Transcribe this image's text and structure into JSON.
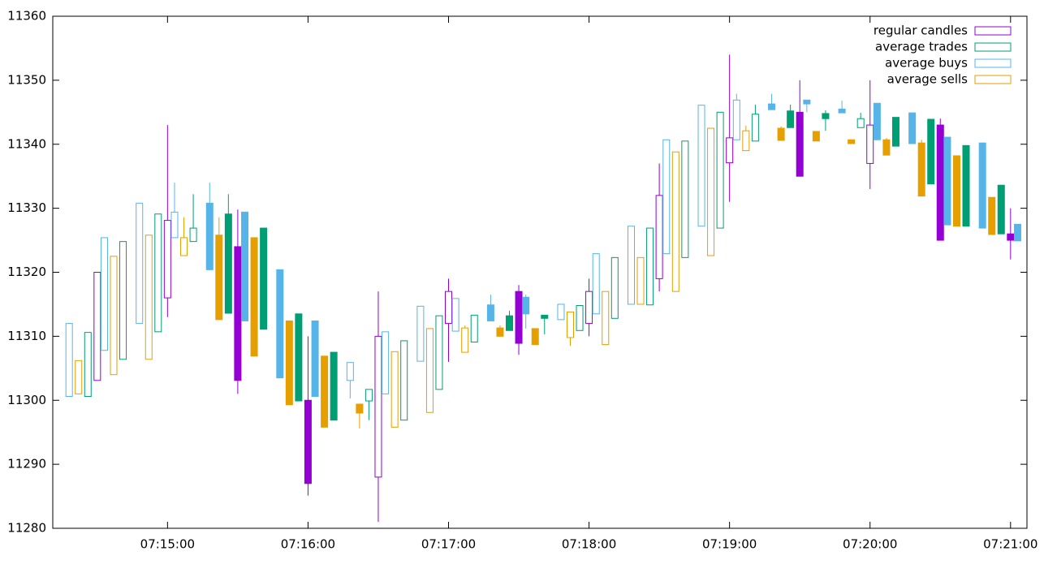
{
  "chart_data": {
    "type": "candlestick",
    "xlim": [
      "07:14:11",
      "07:21:07"
    ],
    "xticks": [
      "07:15:00",
      "07:16:00",
      "07:17:00",
      "07:18:00",
      "07:19:00",
      "07:20:00",
      "07:21:00"
    ],
    "ylim": [
      11280,
      11360
    ],
    "yticks": [
      11280,
      11290,
      11300,
      11310,
      11320,
      11330,
      11340,
      11350,
      11360
    ],
    "grid": false,
    "legend": "top-right",
    "series": [
      {
        "name": "regular candles",
        "color": "#9400d3",
        "x": [
          "07:14:30",
          "07:15:00",
          "07:15:30",
          "07:16:00",
          "07:16:30",
          "07:17:00",
          "07:17:30",
          "07:18:00",
          "07:18:30",
          "07:19:00",
          "07:19:30",
          "07:20:00",
          "07:20:30",
          "07:21:00"
        ],
        "open": [
          11303.1,
          11316,
          11324,
          11300,
          11288,
          11312,
          11317,
          11312,
          11319,
          11337.1,
          11345,
          11337,
          11343,
          11326
        ],
        "high": [
          11320,
          11343,
          11329.8,
          11310,
          11317,
          11319,
          11318,
          11319,
          11337,
          11354,
          11350,
          11350,
          11344,
          11330
        ],
        "low": [
          11303.1,
          11313,
          11301,
          11285.1,
          11281,
          11306,
          11307.1,
          11310,
          11317,
          11331,
          11335,
          11333,
          11325,
          11322
        ],
        "close": [
          11320,
          11328.1,
          11303.1,
          11287,
          11310,
          11317,
          11308.9,
          11317,
          11332,
          11341,
          11335,
          11343,
          11325,
          11325
        ]
      },
      {
        "name": "average trades",
        "color": "#009e73",
        "x": [
          "07:14:26",
          "07:14:41",
          "07:14:56",
          "07:15:11",
          "07:15:26",
          "07:15:41",
          "07:15:56",
          "07:16:11",
          "07:16:26",
          "07:16:41",
          "07:16:56",
          "07:17:11",
          "07:17:26",
          "07:17:41",
          "07:17:56",
          "07:18:11",
          "07:18:26",
          "07:18:41",
          "07:18:56",
          "07:19:11",
          "07:19:26",
          "07:19:41",
          "07:19:56",
          "07:20:11",
          "07:20:26",
          "07:20:41",
          "07:20:56"
        ],
        "open": [
          11300.6,
          11306.4,
          11310.7,
          11324.8,
          11329.1,
          11326.9,
          11313.5,
          11307.5,
          11299.9,
          11296.9,
          11301.7,
          11309.1,
          11313.2,
          11313.3,
          11310.9,
          11312.8,
          11314.9,
          11322.3,
          11326.9,
          11340.5,
          11345.2,
          11344.8,
          11342.6,
          11344.2,
          11343.9,
          11339.8,
          11333.6
        ],
        "high": [
          11310.6,
          11324.8,
          11329.1,
          11332.2,
          11332.2,
          11326.9,
          11313.5,
          11307.5,
          11301.7,
          11309.3,
          11313.2,
          11313.3,
          11314,
          11313.3,
          11314.8,
          11322.3,
          11326.9,
          11340.5,
          11345,
          11346.2,
          11346.2,
          11345.3,
          11344.9,
          11344.2,
          11343.9,
          11339.8,
          11333.6
        ],
        "low": [
          11300.6,
          11306.4,
          11310.7,
          11324.8,
          11313.6,
          11311.1,
          11299.9,
          11296.9,
          11296.9,
          11296.9,
          11301.7,
          11309.1,
          11310.9,
          11310.3,
          11310.9,
          11312.8,
          11314.9,
          11322.3,
          11326.9,
          11340.5,
          11342.6,
          11342.1,
          11342.6,
          11339.7,
          11333.8,
          11327.2,
          11326
        ],
        "close": [
          11310.6,
          11324.8,
          11329.1,
          11326.9,
          11313.6,
          11311.1,
          11299.9,
          11296.9,
          11301.7,
          11309.3,
          11313.2,
          11313.3,
          11310.9,
          11312.8,
          11314.8,
          11322.3,
          11326.9,
          11340.5,
          11345,
          11344.7,
          11342.6,
          11344,
          11344,
          11339.7,
          11333.8,
          11327.2,
          11326
        ]
      },
      {
        "name": "average buys",
        "color": "#56b4e9",
        "x": [
          "07:14:18",
          "07:14:33",
          "07:14:48",
          "07:15:03",
          "07:15:18",
          "07:15:33",
          "07:15:48",
          "07:16:03",
          "07:16:18",
          "07:16:33",
          "07:16:48",
          "07:17:03",
          "07:17:18",
          "07:17:33",
          "07:17:48",
          "07:18:03",
          "07:18:18",
          "07:18:33",
          "07:18:48",
          "07:19:03",
          "07:19:18",
          "07:19:33",
          "07:19:48",
          "07:20:03",
          "07:20:18",
          "07:20:33",
          "07:20:48",
          "07:21:03"
        ],
        "open": [
          11300.6,
          11307.8,
          11312,
          11325.4,
          11330.8,
          11329.4,
          11320.4,
          11312.4,
          11303.1,
          11301,
          11306.1,
          11310.8,
          11314.9,
          11316.1,
          11312.6,
          11313.5,
          11315,
          11322.9,
          11327.2,
          11340.7,
          11346.3,
          11346.9,
          11345.5,
          11346.4,
          11344.9,
          11341.1,
          11340.2,
          11327.5
        ],
        "high": [
          11312,
          11325.4,
          11330.8,
          11334,
          11334,
          11329.4,
          11320.4,
          11312.4,
          11305.9,
          11310.7,
          11314.7,
          11315.9,
          11316.5,
          11316.5,
          11315,
          11322.9,
          11327.2,
          11340.7,
          11346.1,
          11347.9,
          11347.9,
          11346.9,
          11346.8,
          11346.4,
          11344.9,
          11341.1,
          11340.2,
          11327.5
        ],
        "low": [
          11300.6,
          11307.8,
          11312,
          11325.4,
          11320.4,
          11312.4,
          11303.5,
          11300.6,
          11300.3,
          11301,
          11306.1,
          11310.8,
          11312.4,
          11311.2,
          11312.6,
          11313.5,
          11315,
          11322.9,
          11327.2,
          11340.7,
          11345.4,
          11345,
          11344.9,
          11340.7,
          11340.1,
          11327.4,
          11326.9,
          11324.9
        ],
        "close": [
          11312,
          11325.4,
          11330.8,
          11329.4,
          11320.4,
          11312.4,
          11303.5,
          11300.6,
          11305.9,
          11310.7,
          11314.7,
          11315.9,
          11312.4,
          11313.5,
          11315,
          11322.9,
          11327.2,
          11340.7,
          11346.1,
          11346.9,
          11345.4,
          11346.3,
          11344.9,
          11340.7,
          11340.1,
          11327.4,
          11326.9,
          11324.9
        ]
      },
      {
        "name": "average sells",
        "color": "#e69f00",
        "x": [
          "07:14:22",
          "07:14:37",
          "07:14:52",
          "07:15:07",
          "07:15:22",
          "07:15:37",
          "07:15:52",
          "07:16:07",
          "07:16:22",
          "07:16:37",
          "07:16:52",
          "07:17:07",
          "07:17:22",
          "07:17:37",
          "07:17:52",
          "07:18:07",
          "07:18:22",
          "07:18:37",
          "07:18:52",
          "07:19:07",
          "07:19:22",
          "07:19:37",
          "07:19:52",
          "07:20:07",
          "07:20:22",
          "07:20:37",
          "07:20:52"
        ],
        "open": [
          11301,
          11304,
          11306.4,
          11322.6,
          11325.8,
          11325.4,
          11312.4,
          11306.9,
          11299.4,
          11295.8,
          11298.1,
          11307.5,
          11311.3,
          11311.2,
          11309.8,
          11308.7,
          11315,
          11317,
          11322.6,
          11339,
          11342.5,
          11342,
          11340.7,
          11340.7,
          11340.2,
          11338.2,
          11331.7
        ],
        "high": [
          11306.2,
          11322.5,
          11325.8,
          11328.6,
          11328.6,
          11325.4,
          11312.4,
          11306.9,
          11299.4,
          11307.6,
          11311.2,
          11311.7,
          11311.7,
          11311.2,
          11313.8,
          11317,
          11322.3,
          11338.8,
          11342.5,
          11342.9,
          11342.8,
          11342,
          11340.7,
          11341,
          11340.7,
          11338.2,
          11331.7
        ],
        "low": [
          11301,
          11304,
          11306.4,
          11322.6,
          11312.6,
          11306.9,
          11299.3,
          11295.8,
          11295.6,
          11295.8,
          11298.1,
          11307.5,
          11310,
          11308.7,
          11308.5,
          11308.7,
          11315,
          11317,
          11322.6,
          11339,
          11340.6,
          11340.5,
          11340.1,
          11338.3,
          11331.9,
          11327.2,
          11325.9
        ],
        "close": [
          11306.2,
          11322.5,
          11325.8,
          11325.4,
          11312.6,
          11306.9,
          11299.3,
          11295.8,
          11298,
          11307.6,
          11311.2,
          11311.3,
          11310,
          11308.7,
          11313.8,
          11317,
          11322.3,
          11338.8,
          11342.5,
          11342.1,
          11340.6,
          11340.5,
          11340.1,
          11338.3,
          11331.9,
          11327.2,
          11325.9
        ]
      }
    ]
  }
}
